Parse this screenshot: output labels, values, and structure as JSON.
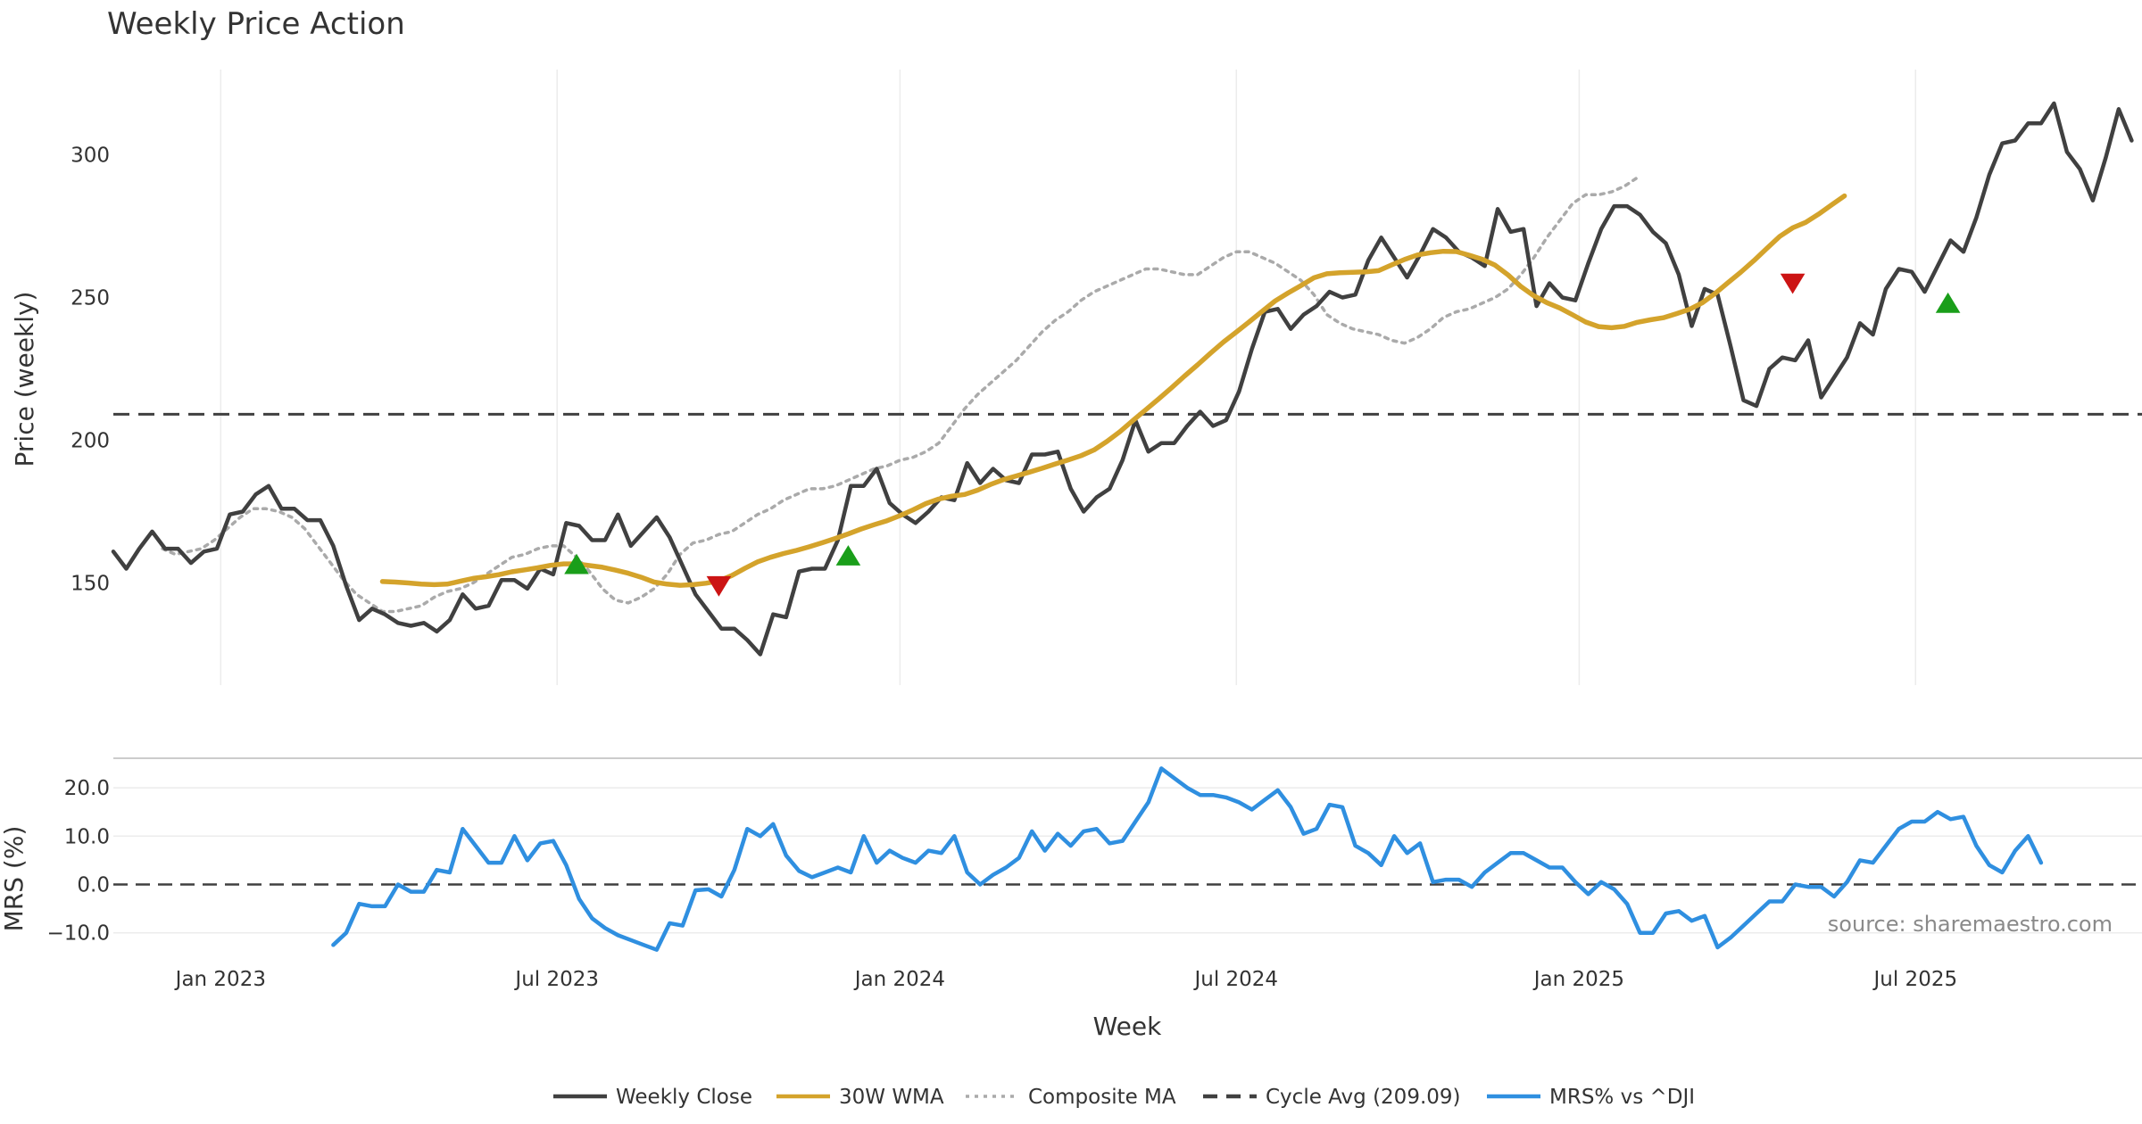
{
  "chart_data": {
    "type": "line",
    "title": "Weekly Price Action",
    "xlabel": "Week",
    "source": "source: sharemaestro.com",
    "x_ticks": [
      {
        "label": "Jan 2023",
        "week": 0
      },
      {
        "label": "Jul 2023",
        "week": 26
      },
      {
        "label": "Jan 2024",
        "week": 52.5
      },
      {
        "label": "Jul 2024",
        "week": 78.5
      },
      {
        "label": "Jan 2025",
        "week": 105
      },
      {
        "label": "Jul 2025",
        "week": 131
      }
    ],
    "x_range": [
      -8.3,
      148.5
    ],
    "price_panel": {
      "ylabel": "Price (weekly)",
      "ylim": [
        112,
        330
      ],
      "yticks": [
        150,
        200,
        250,
        300
      ],
      "cycle_avg": 209.09,
      "series": [
        {
          "name": "Weekly Close",
          "color": "#404040",
          "start_week": -8.3,
          "values": [
            161,
            155,
            162,
            168,
            162,
            162,
            157,
            161,
            162,
            174,
            175,
            181,
            184,
            176,
            176,
            172,
            172,
            163,
            149,
            137,
            141,
            139,
            136,
            135,
            136,
            133,
            137,
            146,
            141,
            142,
            151,
            151,
            148,
            155,
            153,
            171,
            170,
            165,
            165,
            174,
            163,
            168,
            173,
            166,
            156,
            146,
            140,
            134,
            134,
            130,
            125,
            139,
            138,
            154,
            155,
            155,
            165,
            184,
            184,
            190,
            178,
            174,
            171,
            175,
            180,
            179,
            192,
            185,
            190,
            186,
            185,
            195,
            195,
            196,
            183,
            175,
            180,
            183,
            193,
            207,
            196,
            199,
            199,
            205,
            210,
            205,
            207,
            217,
            232,
            245,
            246,
            239,
            244,
            247,
            252,
            250,
            251,
            263,
            271,
            264,
            257,
            265,
            274,
            271,
            266,
            264,
            261,
            281,
            273,
            274,
            247,
            255,
            250,
            249,
            262,
            274,
            282,
            282,
            279,
            273,
            269,
            258,
            240,
            253,
            251,
            233,
            214,
            212,
            225,
            229,
            228,
            235,
            215,
            222,
            229,
            241,
            237,
            253,
            260,
            259,
            252,
            261,
            270,
            266,
            278,
            293,
            304,
            305,
            311,
            311,
            318,
            301,
            295,
            284,
            299,
            316,
            305
          ]
        },
        {
          "name": "30W WMA",
          "color": "#d4a32b",
          "start_week": 12.5,
          "values": [
            150.5,
            150.3,
            150,
            149.6,
            149.4,
            149.6,
            150.6,
            151.6,
            152.2,
            152.9,
            153.9,
            154.6,
            155.3,
            156.2,
            156.7,
            156.7,
            156.1,
            155.5,
            154.5,
            153.4,
            152,
            150.3,
            149.6,
            149.2,
            149.4,
            149.9,
            150.7,
            152.6,
            155.1,
            157.4,
            159,
            160.3,
            161.4,
            162.7,
            164.1,
            165.6,
            167.2,
            168.9,
            170.4,
            171.8,
            173.6,
            175.6,
            177.8,
            179.4,
            180.4,
            181,
            182.5,
            184.5,
            186.2,
            187.5,
            188.8,
            190.2,
            191.7,
            193.1,
            194.6,
            196.6,
            199.6,
            203,
            206.9,
            210.7,
            214.5,
            218.4,
            222.5,
            226.4,
            230.5,
            234.4,
            237.9,
            241.5,
            245.2,
            248.8,
            251.6,
            254.2,
            256.9,
            258.3,
            258.7,
            258.8,
            259,
            259.4,
            261.4,
            263.3,
            264.9,
            265.7,
            266.2,
            266.1,
            264.8,
            263.4,
            261.3,
            257.9,
            253.8,
            250.6,
            248.2,
            246.3,
            243.9,
            241.4,
            239.8,
            239.4,
            239.9,
            241.3,
            242.2,
            242.9,
            244.3,
            245.8,
            248.1,
            251.4,
            255.2,
            258.9,
            262.9,
            267.2,
            271.4,
            274.4,
            276.3,
            279.2,
            282.4,
            285.6
          ]
        },
        {
          "name": "Composite MA",
          "color": "#aaaaaa",
          "dashed": true,
          "start_week": -4.5,
          "values": [
            162,
            160,
            161,
            162,
            165,
            169,
            173,
            176,
            176,
            175,
            173,
            169,
            163,
            157,
            151,
            146,
            143,
            140,
            140,
            141,
            142,
            145,
            147,
            148,
            150,
            153,
            156,
            159,
            160,
            162,
            163,
            163,
            159,
            154,
            148,
            144,
            143,
            145,
            148,
            153,
            160,
            164,
            165,
            167,
            168,
            171,
            174,
            176,
            179,
            181,
            183,
            183,
            184,
            186,
            188,
            190,
            191,
            193,
            194,
            196,
            199,
            205,
            211,
            216,
            220,
            224,
            228,
            233,
            238,
            242,
            245,
            249,
            252,
            254,
            256,
            258,
            260,
            260,
            259,
            258,
            258,
            261,
            264,
            266,
            266,
            264,
            262,
            259,
            256,
            251,
            244,
            241,
            239,
            238,
            237,
            235,
            234,
            236,
            239,
            243,
            245,
            246,
            248,
            250,
            253,
            258,
            264,
            271,
            277,
            283,
            286,
            286,
            287,
            289,
            292
          ]
        }
      ],
      "markers": [
        {
          "type": "buy",
          "week": 27.5,
          "price": 156.5
        },
        {
          "type": "sell",
          "week": 38.5,
          "price": 149
        },
        {
          "type": "buy",
          "week": 48.5,
          "price": 159.5
        },
        {
          "type": "sell",
          "week": 121.5,
          "price": 255
        },
        {
          "type": "buy",
          "week": 133.5,
          "price": 248
        }
      ]
    },
    "mrs_panel": {
      "ylabel": "MRS (%)",
      "ylim": [
        -14.5,
        26
      ],
      "yticks": [
        -10.0,
        0.0,
        10.0,
        20.0
      ],
      "ytick_labels": [
        "−10.0",
        "0.0",
        "10.0",
        "20.0"
      ],
      "series": [
        {
          "name": "MRS% vs ^DJI",
          "color": "#2f8fe0",
          "start_week": 8.7,
          "values": [
            -12.5,
            -10,
            -4,
            -4.5,
            -4.5,
            0,
            -1.5,
            -1.5,
            3,
            2.5,
            11.5,
            8,
            4.5,
            4.5,
            10,
            5,
            8.5,
            9,
            4,
            -3,
            -7,
            -9,
            -10.5,
            -11.5,
            -12.5,
            -13.5,
            -8,
            -8.5,
            -1.2,
            -1,
            -2.5,
            3,
            11.5,
            10,
            12.5,
            6,
            2.8,
            1.5,
            2.5,
            3.5,
            2.5,
            10,
            4.5,
            7,
            5.5,
            4.5,
            7,
            6.5,
            10,
            2.5,
            0,
            2,
            3.5,
            5.5,
            11,
            7,
            10.5,
            8,
            11,
            11.5,
            8.5,
            9,
            13,
            17,
            24,
            22,
            20,
            18.5,
            18.5,
            18,
            17,
            15.5,
            17.5,
            19.5,
            16,
            10.5,
            11.5,
            16.5,
            16,
            8,
            6.5,
            4,
            10,
            6.5,
            8.5,
            0.5,
            1,
            1,
            -0.5,
            2.5,
            4.5,
            6.5,
            6.5,
            5,
            3.5,
            3.5,
            0.5,
            -2,
            0.5,
            -1,
            -4,
            -10,
            -10,
            -6,
            -5.5,
            -7.5,
            -6.5,
            -13,
            -11,
            -8.5,
            -6,
            -3.5,
            -3.5,
            0,
            -0.5,
            -0.5,
            -2.5,
            0.5,
            5,
            4.5,
            8,
            11.5,
            13,
            13,
            15,
            13.5,
            14,
            8,
            4,
            2.5,
            7,
            10,
            4.5
          ]
        }
      ]
    },
    "legend": [
      {
        "label": "Weekly Close",
        "color": "#404040",
        "style": "solid"
      },
      {
        "label": "30W WMA",
        "color": "#d4a32b",
        "style": "solid"
      },
      {
        "label": "Composite MA",
        "color": "#aaaaaa",
        "style": "dotted"
      },
      {
        "label": "Cycle Avg (209.09)",
        "color": "#404040",
        "style": "dashed"
      },
      {
        "label": "MRS% vs ^DJI",
        "color": "#2f8fe0",
        "style": "solid"
      }
    ]
  }
}
